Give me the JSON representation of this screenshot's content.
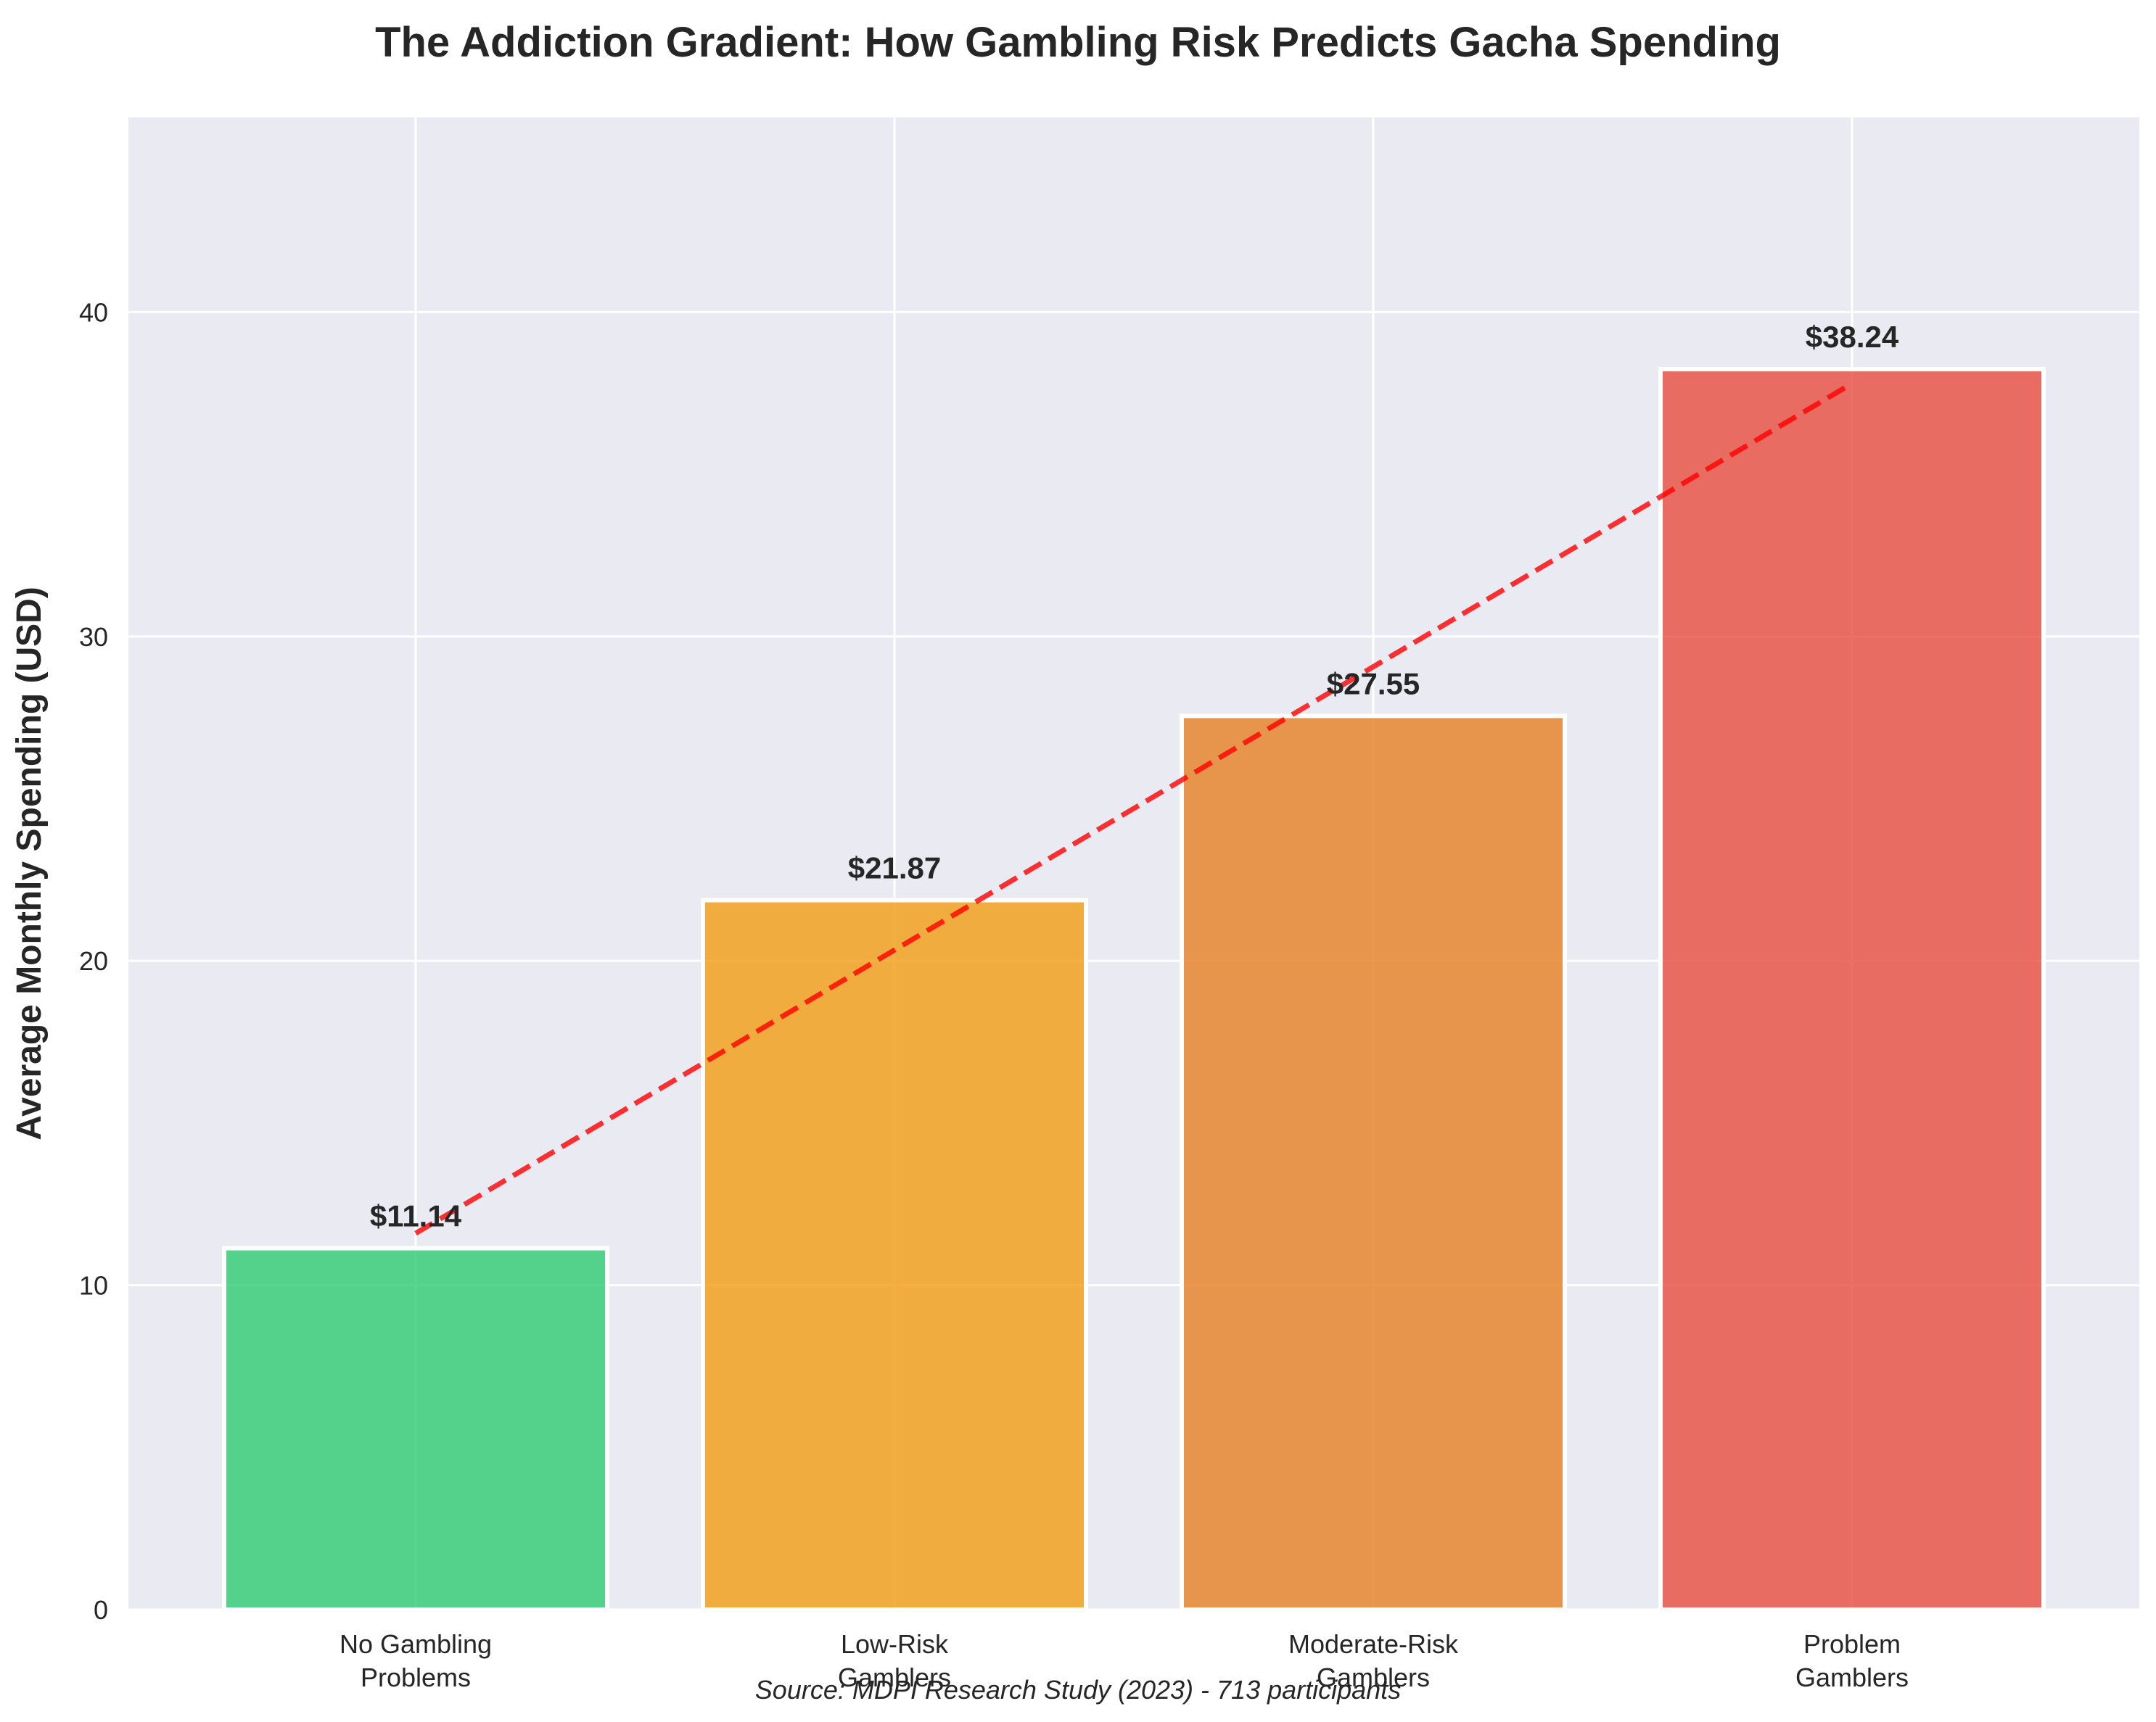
{
  "chart_data": {
    "type": "bar",
    "title": "The Addiction Gradient: How Gambling Risk Predicts Gacha Spending",
    "xlabel": "",
    "ylabel": "Average Monthly Spending (USD)",
    "ylim": [
      0,
      46
    ],
    "yticks": [
      0,
      10,
      20,
      30,
      40
    ],
    "categories": [
      [
        "No Gambling",
        "Problems"
      ],
      [
        "Low-Risk",
        "Gamblers"
      ],
      [
        "Moderate-Risk",
        "Gamblers"
      ],
      [
        "Problem",
        "Gamblers"
      ]
    ],
    "values": [
      11.14,
      21.87,
      27.55,
      38.24
    ],
    "value_labels": [
      "$11.14",
      "$21.87",
      "$27.55",
      "$38.24"
    ],
    "bar_colors": [
      "#2ecc71",
      "#f39c12",
      "#e67e22",
      "#e74c3c"
    ],
    "trend_line": {
      "style": "dashed",
      "color": "#ff0000",
      "start_value": 11.6,
      "end_value": 37.8
    },
    "grid": true,
    "background": "#eaeaf2",
    "source": "Source: MDPI Research Study (2023) - 713 participants"
  }
}
